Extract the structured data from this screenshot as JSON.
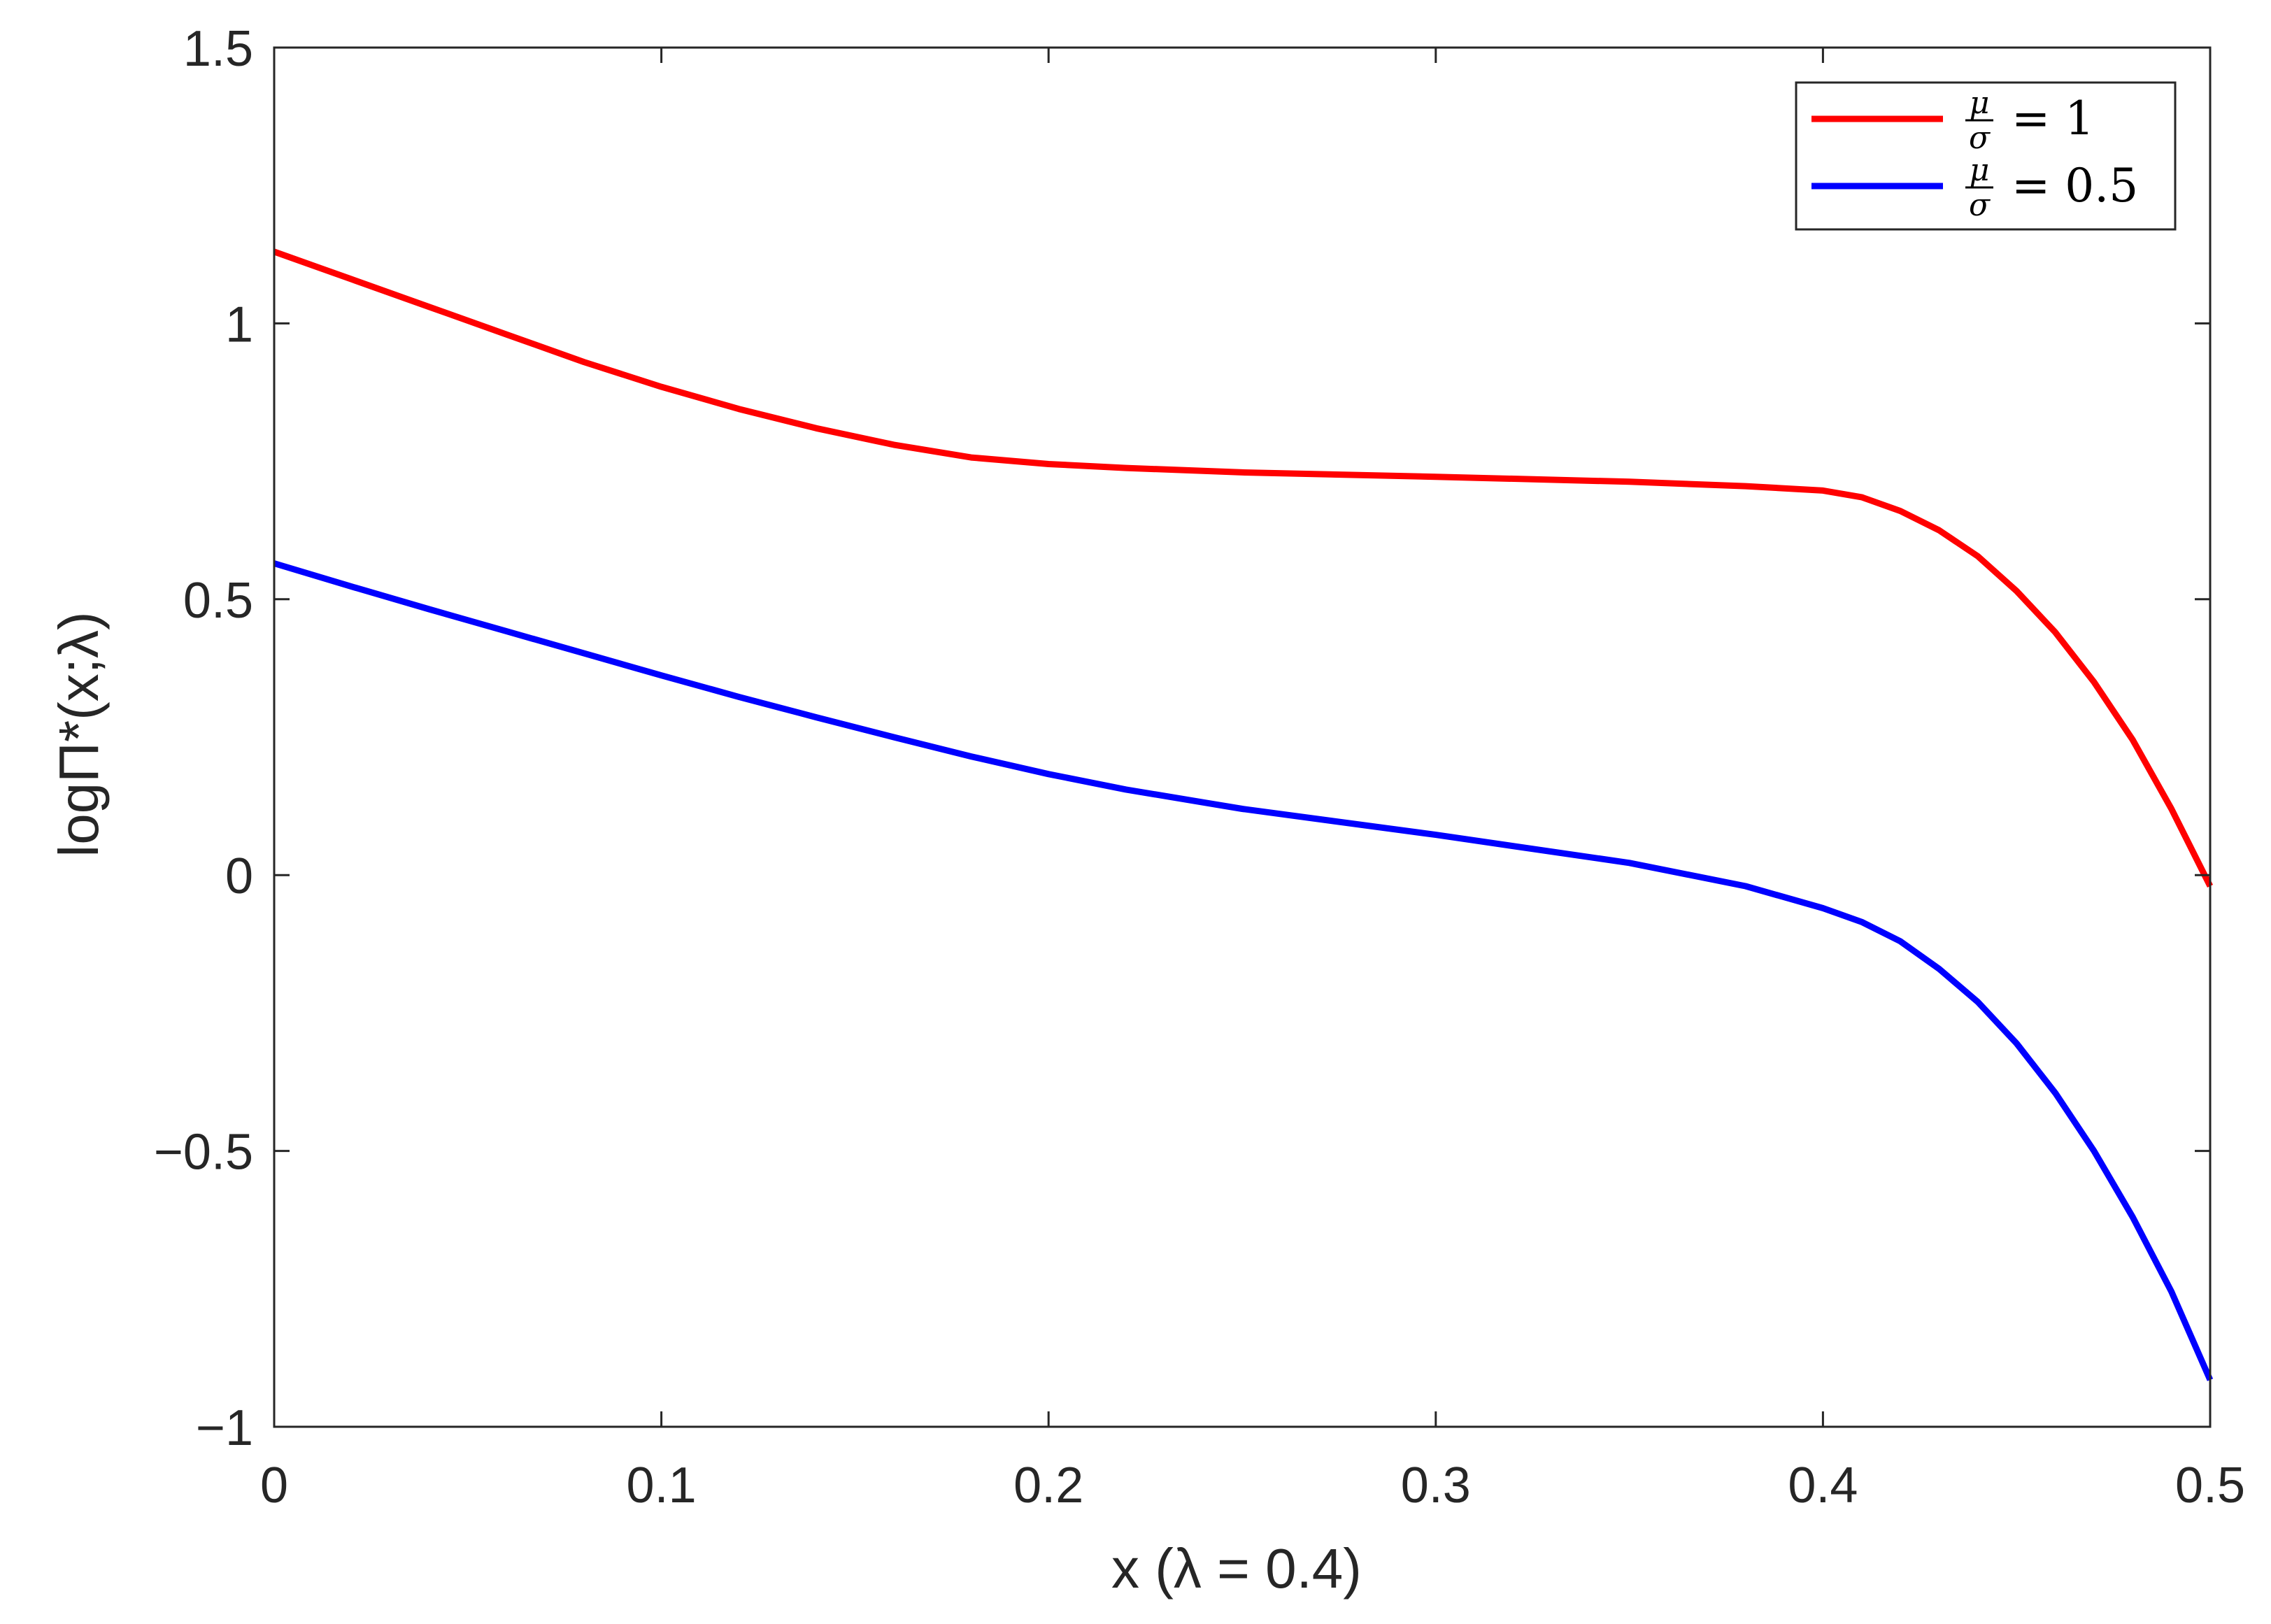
{
  "chart_data": {
    "type": "line",
    "xlabel": "x (λ = 0.4)",
    "ylabel": "logΠ*(x;λ)",
    "xlim": [
      0,
      0.5
    ],
    "ylim": [
      -1,
      1.5
    ],
    "xticks": [
      0,
      0.1,
      0.2,
      0.3,
      0.4,
      0.5
    ],
    "yticks": [
      -1,
      -0.5,
      0,
      0.5,
      1,
      1.5
    ],
    "xtick_labels": [
      "0",
      "0.1",
      "0.2",
      "0.3",
      "0.4",
      "0.5"
    ],
    "ytick_labels": [
      "−1",
      "−0.5",
      "0",
      "0.5",
      "1",
      "1.5"
    ],
    "grid": false,
    "legend_position": "top-right",
    "series": [
      {
        "name": "μ/σ = 1",
        "legend_lhs_num": "μ",
        "legend_lhs_den": "σ",
        "legend_rhs": "= 1",
        "color": "#ff0000",
        "x": [
          0,
          0.02,
          0.04,
          0.06,
          0.08,
          0.1,
          0.12,
          0.14,
          0.16,
          0.18,
          0.2,
          0.22,
          0.25,
          0.3,
          0.35,
          0.38,
          0.4,
          0.41,
          0.42,
          0.43,
          0.44,
          0.45,
          0.46,
          0.47,
          0.48,
          0.49,
          0.5
        ],
        "y": [
          1.13,
          1.08,
          1.03,
          0.98,
          0.93,
          0.885,
          0.845,
          0.81,
          0.78,
          0.757,
          0.745,
          0.738,
          0.73,
          0.722,
          0.713,
          0.705,
          0.697,
          0.685,
          0.66,
          0.625,
          0.578,
          0.515,
          0.44,
          0.35,
          0.245,
          0.12,
          -0.02
        ]
      },
      {
        "name": "μ/σ = 0.5",
        "legend_lhs_num": "μ",
        "legend_lhs_den": "σ",
        "legend_rhs": "= 0.5",
        "color": "#0000ff",
        "x": [
          0,
          0.02,
          0.04,
          0.06,
          0.08,
          0.1,
          0.12,
          0.14,
          0.16,
          0.18,
          0.2,
          0.22,
          0.25,
          0.3,
          0.35,
          0.38,
          0.4,
          0.41,
          0.42,
          0.43,
          0.44,
          0.45,
          0.46,
          0.47,
          0.48,
          0.49,
          0.5
        ],
        "y": [
          0.565,
          0.523,
          0.482,
          0.442,
          0.402,
          0.362,
          0.323,
          0.286,
          0.25,
          0.215,
          0.183,
          0.155,
          0.12,
          0.073,
          0.022,
          -0.02,
          -0.06,
          -0.085,
          -0.12,
          -0.17,
          -0.23,
          -0.305,
          -0.395,
          -0.5,
          -0.62,
          -0.755,
          -0.915
        ]
      }
    ]
  }
}
